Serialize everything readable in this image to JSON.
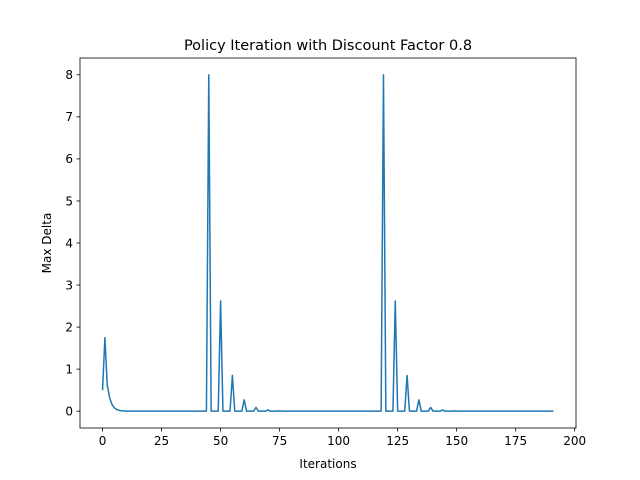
{
  "chart_data": {
    "type": "line",
    "title": "Policy Iteration with Discount Factor 0.8",
    "xlabel": "Iterations",
    "ylabel": "Max Delta",
    "xlim": [
      -9.55,
      200.55
    ],
    "ylim": [
      -0.4,
      8.4
    ],
    "xticks": [
      0,
      25,
      50,
      75,
      100,
      125,
      150,
      175,
      200
    ],
    "yticks": [
      0,
      1,
      2,
      3,
      4,
      5,
      6,
      7,
      8
    ],
    "grid": false,
    "series": [
      {
        "color": "#1f77b4",
        "points": [
          [
            0,
            0.5
          ],
          [
            1,
            1.75
          ],
          [
            2,
            0.62
          ],
          [
            3,
            0.32
          ],
          [
            4,
            0.16
          ],
          [
            5,
            0.08
          ],
          [
            6,
            0.04
          ],
          [
            7,
            0.02
          ],
          [
            8,
            0.01
          ],
          [
            10,
            0.0
          ],
          [
            44,
            0.0
          ],
          [
            45,
            8.0
          ],
          [
            46,
            0.0
          ],
          [
            49,
            0.0
          ],
          [
            50,
            2.62
          ],
          [
            51,
            0.0
          ],
          [
            54,
            0.0
          ],
          [
            55,
            0.85
          ],
          [
            56,
            0.0
          ],
          [
            59,
            0.0
          ],
          [
            60,
            0.27
          ],
          [
            61,
            0.0
          ],
          [
            64,
            0.0
          ],
          [
            65,
            0.09
          ],
          [
            66,
            0.0
          ],
          [
            69,
            0.0
          ],
          [
            70,
            0.03
          ],
          [
            71,
            0.0
          ],
          [
            74,
            0.0
          ],
          [
            75,
            0.01
          ],
          [
            76,
            0.0
          ],
          [
            118,
            0.0
          ],
          [
            119,
            8.0
          ],
          [
            120,
            0.0
          ],
          [
            123,
            0.0
          ],
          [
            124,
            2.62
          ],
          [
            125,
            0.0
          ],
          [
            128,
            0.0
          ],
          [
            129,
            0.85
          ],
          [
            130,
            0.0
          ],
          [
            133,
            0.0
          ],
          [
            134,
            0.27
          ],
          [
            135,
            0.0
          ],
          [
            138,
            0.0
          ],
          [
            139,
            0.09
          ],
          [
            140,
            0.0
          ],
          [
            143,
            0.0
          ],
          [
            144,
            0.03
          ],
          [
            145,
            0.0
          ],
          [
            148,
            0.0
          ],
          [
            149,
            0.01
          ],
          [
            150,
            0.0
          ],
          [
            191,
            0.0
          ]
        ]
      }
    ]
  }
}
